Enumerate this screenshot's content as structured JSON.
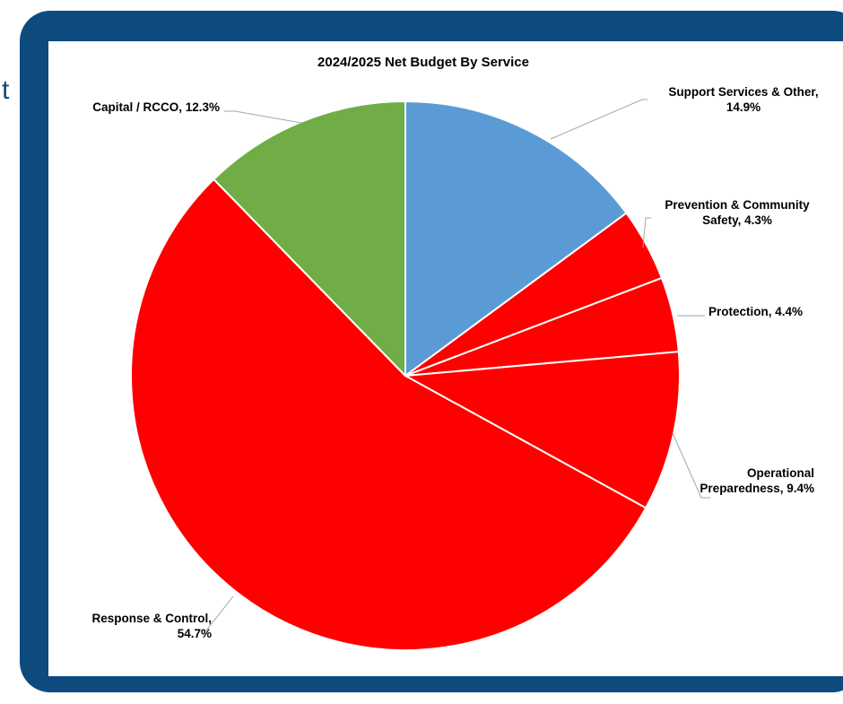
{
  "edge_glyph": "t",
  "colors": {
    "frame": "#0d4a7d",
    "blue": "#5b9bd5",
    "red": "#ff0000",
    "green": "#70ad47",
    "leader": "#a6a6a6"
  },
  "chart_data": {
    "type": "pie",
    "title": "2024/2025 Net Budget By Service",
    "slices": [
      {
        "label": "Support Services & Other",
        "value": 14.9,
        "display_lines": [
          "Support Services & Other,",
          "14.9%"
        ],
        "color": "#5b9bd5"
      },
      {
        "label": "Prevention & Community Safety",
        "value": 4.3,
        "display_lines": [
          "Prevention & Community",
          "Safety, 4.3%"
        ],
        "color": "#ff0000"
      },
      {
        "label": "Protection",
        "value": 4.4,
        "display_lines": [
          "Protection, 4.4%"
        ],
        "color": "#ff0000"
      },
      {
        "label": "Operational Preparedness",
        "value": 9.4,
        "display_lines": [
          "Operational",
          "Preparedness, 9.4%"
        ],
        "color": "#ff0000"
      },
      {
        "label": "Response & Control",
        "value": 54.7,
        "display_lines": [
          "Response & Control,",
          "54.7%"
        ],
        "color": "#ff0000"
      },
      {
        "label": "Capital / RCCO",
        "value": 12.3,
        "display_lines": [
          "Capital / RCCO, 12.3%"
        ],
        "color": "#70ad47"
      }
    ],
    "legend": "none",
    "start": "12 o'clock, clockwise"
  }
}
